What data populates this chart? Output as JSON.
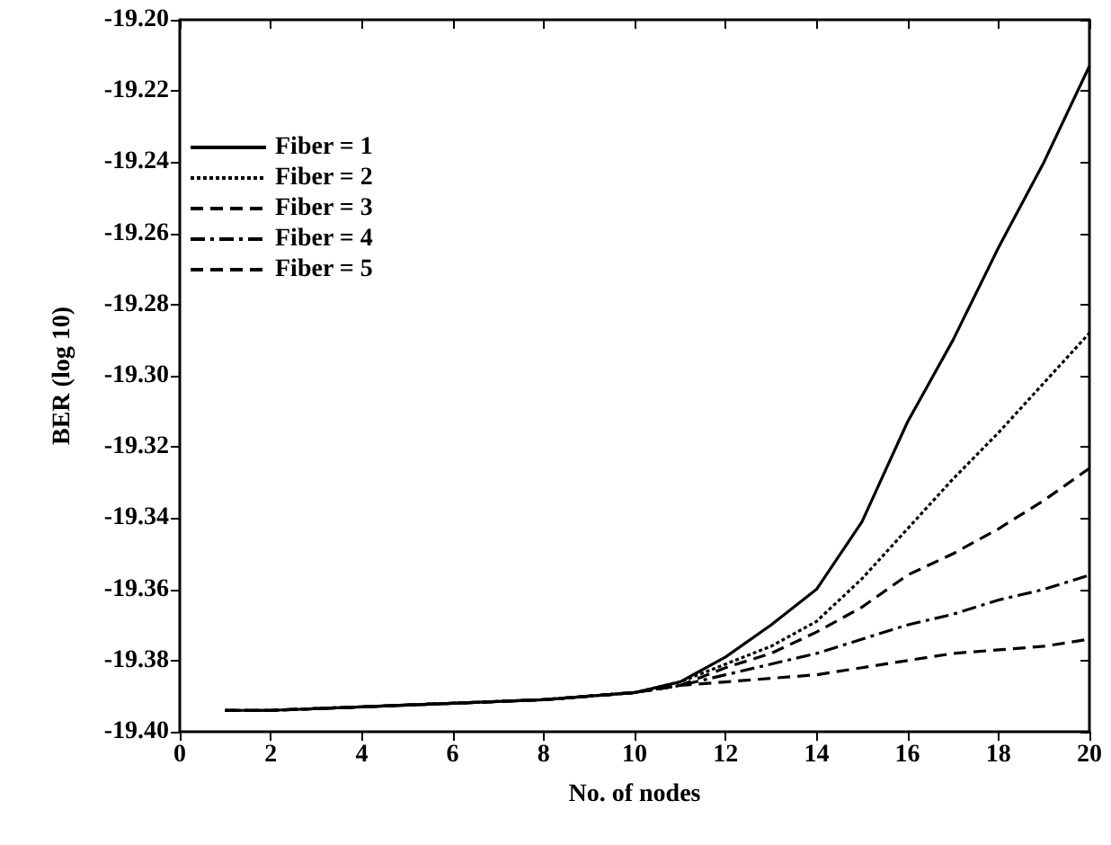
{
  "chart_data": {
    "type": "line",
    "xlabel": "No. of nodes",
    "ylabel": "BER (log 10)",
    "x": [
      1,
      2,
      4,
      6,
      8,
      9,
      10,
      11,
      12,
      13,
      14,
      15,
      16,
      17,
      18,
      19,
      20
    ],
    "series": [
      {
        "name": "Fiber = 1",
        "color": "#000000",
        "line_style": "solid",
        "values": [
          -19.394,
          -19.394,
          -19.393,
          -19.392,
          -19.391,
          -19.39,
          -19.389,
          -19.386,
          -19.379,
          -19.37,
          -19.36,
          -19.341,
          -19.313,
          -19.29,
          -19.264,
          -19.24,
          -19.213
        ]
      },
      {
        "name": "Fiber = 2",
        "color": "#000000",
        "line_style": "dotted",
        "values": [
          -19.394,
          -19.394,
          -19.393,
          -19.392,
          -19.391,
          -19.39,
          -19.389,
          -19.386,
          -19.381,
          -19.376,
          -19.369,
          -19.357,
          -19.343,
          -19.329,
          -19.316,
          -19.302,
          -19.288
        ]
      },
      {
        "name": "Fiber = 3",
        "color": "#000000",
        "line_style": "dashed",
        "values": [
          -19.394,
          -19.394,
          -19.393,
          -19.392,
          -19.391,
          -19.39,
          -19.389,
          -19.387,
          -19.382,
          -19.378,
          -19.372,
          -19.365,
          -19.356,
          -19.35,
          -19.343,
          -19.335,
          -19.326
        ]
      },
      {
        "name": "Fiber = 4",
        "color": "#000000",
        "line_style": "dashdot",
        "values": [
          -19.394,
          -19.394,
          -19.393,
          -19.392,
          -19.391,
          -19.39,
          -19.389,
          -19.387,
          -19.384,
          -19.381,
          -19.378,
          -19.374,
          -19.37,
          -19.367,
          -19.363,
          -19.36,
          -19.356
        ]
      },
      {
        "name": "Fiber = 5",
        "color": "#000000",
        "line_style": "dashed",
        "values": [
          -19.394,
          -19.394,
          -19.393,
          -19.392,
          -19.391,
          -19.39,
          -19.389,
          -19.387,
          -19.386,
          -19.385,
          -19.384,
          -19.382,
          -19.38,
          -19.378,
          -19.377,
          -19.376,
          -19.374
        ]
      }
    ],
    "xlim": [
      0,
      20
    ],
    "xticks": [
      0,
      2,
      4,
      6,
      8,
      10,
      12,
      14,
      16,
      18,
      20
    ],
    "ylim": [
      -19.4,
      -19.2
    ],
    "yticks": [
      {
        "value": -19.4,
        "label": "-19.40"
      },
      {
        "value": -19.38,
        "label": "-19.38"
      },
      {
        "value": -19.36,
        "label": "-19.36"
      },
      {
        "value": -19.34,
        "label": "-19.34"
      },
      {
        "value": -19.32,
        "label": "-19.32"
      },
      {
        "value": -19.3,
        "label": "-19.30"
      },
      {
        "value": -19.28,
        "label": "-19.28"
      },
      {
        "value": -19.26,
        "label": "-19.26"
      },
      {
        "value": -19.24,
        "label": "-19.24"
      },
      {
        "value": -19.22,
        "label": "-19.22"
      },
      {
        "value": -19.2,
        "label": "-19.20"
      }
    ],
    "grid": false,
    "legend": "top left",
    "marker": "none"
  }
}
